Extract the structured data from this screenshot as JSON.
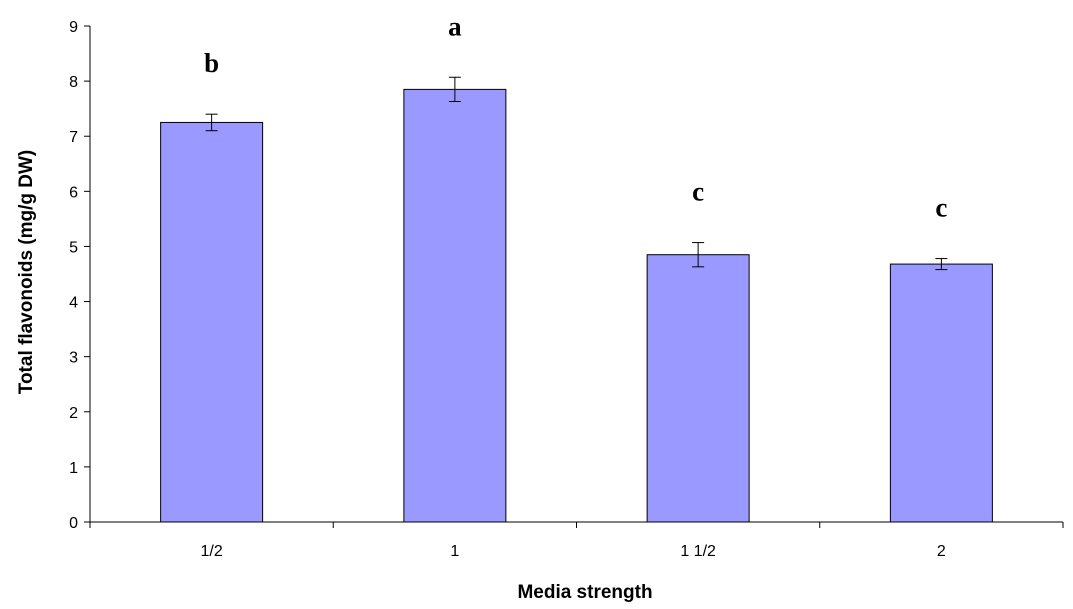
{
  "chart_data": {
    "type": "bar",
    "title": "",
    "xlabel": "Media strength",
    "ylabel": "Total flavonoids (mg/g DW)",
    "categories": [
      "1/2",
      "1",
      "1 1/2",
      "2"
    ],
    "values": [
      7.25,
      7.85,
      4.85,
      4.68
    ],
    "errors": [
      0.15,
      0.22,
      0.22,
      0.1
    ],
    "significance_letters": [
      "b",
      "a",
      "c",
      "c"
    ],
    "ylim": [
      0,
      9
    ],
    "yticks": [
      "0",
      "1",
      "2",
      "3",
      "4",
      "5",
      "6",
      "7",
      "8",
      "9"
    ],
    "grid": false,
    "legend": "none",
    "bar_color": "#9999ff"
  }
}
